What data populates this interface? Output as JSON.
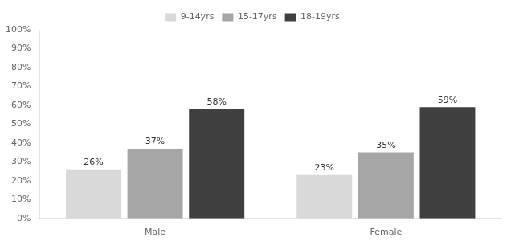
{
  "chart_data": {
    "type": "bar",
    "categories": [
      "Male",
      "Female"
    ],
    "series": [
      {
        "name": "9-14yrs",
        "color": "#d9d9d9",
        "values": [
          26,
          23
        ],
        "value_labels": [
          "26%",
          "23%"
        ]
      },
      {
        "name": "15-17yrs",
        "color": "#a6a6a6",
        "values": [
          37,
          35
        ],
        "value_labels": [
          "37%",
          "35%"
        ]
      },
      {
        "name": "18-19yrs",
        "color": "#404040",
        "values": [
          58,
          59
        ],
        "value_labels": [
          "58%",
          "59%"
        ]
      }
    ],
    "ylim": [
      0,
      100
    ],
    "yticks": [
      {
        "value": 0,
        "label": "0%"
      },
      {
        "value": 10,
        "label": "10%"
      },
      {
        "value": 20,
        "label": "20%"
      },
      {
        "value": 30,
        "label": "30%"
      },
      {
        "value": 40,
        "label": "40%"
      },
      {
        "value": 50,
        "label": "50%"
      },
      {
        "value": 60,
        "label": "60%"
      },
      {
        "value": 70,
        "label": "70%"
      },
      {
        "value": 80,
        "label": "80%"
      },
      {
        "value": 90,
        "label": "90%"
      },
      {
        "value": 100,
        "label": "100%"
      }
    ],
    "grid": false,
    "legend": "top",
    "data_labels": true
  }
}
